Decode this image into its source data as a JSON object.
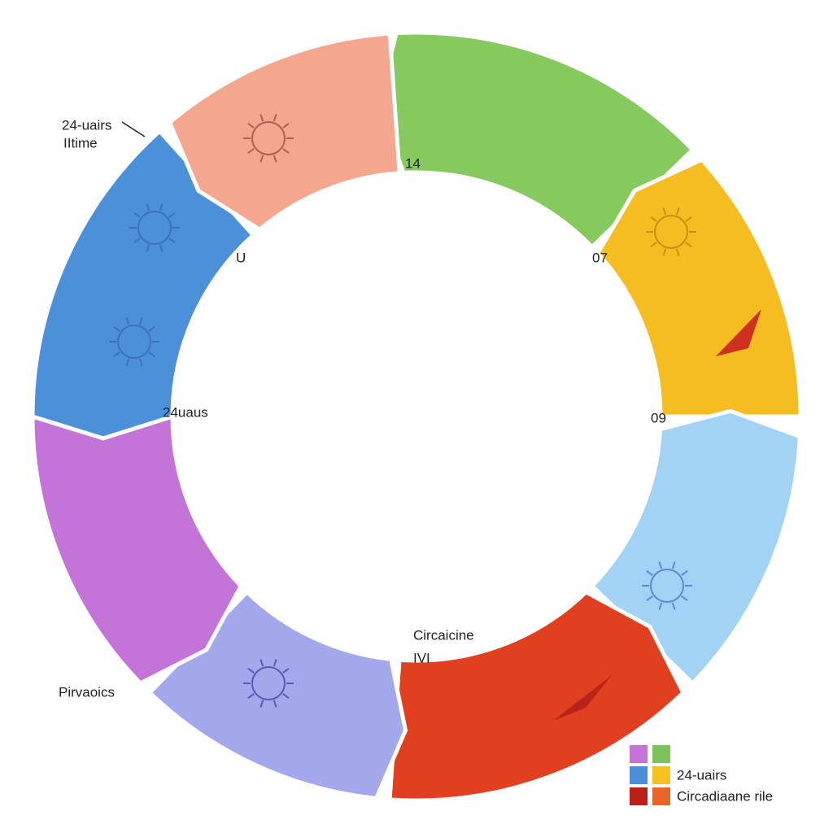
{
  "annotations": [
    "24-uairs",
    "IItime",
    "14",
    "U",
    "07",
    "24uaus",
    "09",
    "Circaicine",
    "IVI",
    "Pirvaoics"
  ],
  "legend": [
    "24-uairs",
    "Circadiaane rile"
  ]
}
